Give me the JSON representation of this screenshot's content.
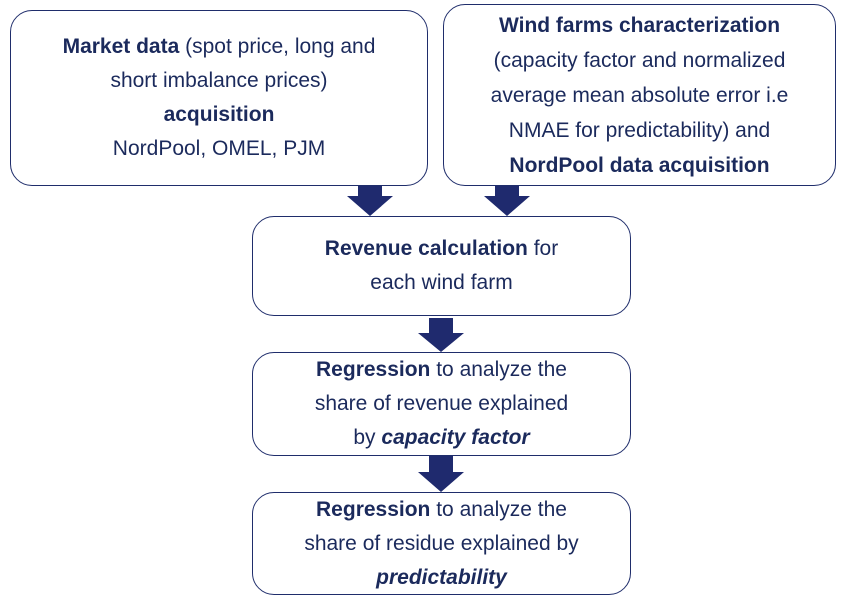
{
  "nodes": [
    {
      "lines": [
        [
          {
            "text": "Market data",
            "bold": true
          },
          {
            "text": " (spot price, long and"
          }
        ],
        [
          {
            "text": "short imbalance prices)"
          }
        ],
        [
          {
            "text": "acquisition",
            "bold": true
          }
        ],
        [
          {
            "text": "NordPool, OMEL, PJM"
          }
        ]
      ]
    },
    {
      "lines": [
        [
          {
            "text": "Wind farms characterization",
            "bold": true
          }
        ],
        [
          {
            "text": "(capacity factor and normalized"
          }
        ],
        [
          {
            "text": "average mean absolute error i.e"
          }
        ],
        [
          {
            "text": "NMAE for predictability) and"
          }
        ],
        [
          {
            "text": "NordPool data acquisition",
            "bold": true
          }
        ]
      ]
    },
    {
      "lines": [
        [
          {
            "text": "Revenue calculation",
            "bold": true
          },
          {
            "text": " for"
          }
        ],
        [
          {
            "text": "each wind farm"
          }
        ]
      ]
    },
    {
      "lines": [
        [
          {
            "text": "Regression",
            "bold": true
          },
          {
            "text": " to analyze the"
          }
        ],
        [
          {
            "text": "share of revenue explained"
          }
        ],
        [
          {
            "text": "by "
          },
          {
            "text": "capacity factor",
            "bold": true,
            "italic": true
          }
        ]
      ]
    },
    {
      "lines": [
        [
          {
            "text": "Regression",
            "bold": true
          },
          {
            "text": " to analyze the"
          }
        ],
        [
          {
            "text": "share of residue explained by"
          }
        ],
        [
          {
            "text": "predictability",
            "bold": true,
            "italic": true
          }
        ]
      ]
    }
  ]
}
